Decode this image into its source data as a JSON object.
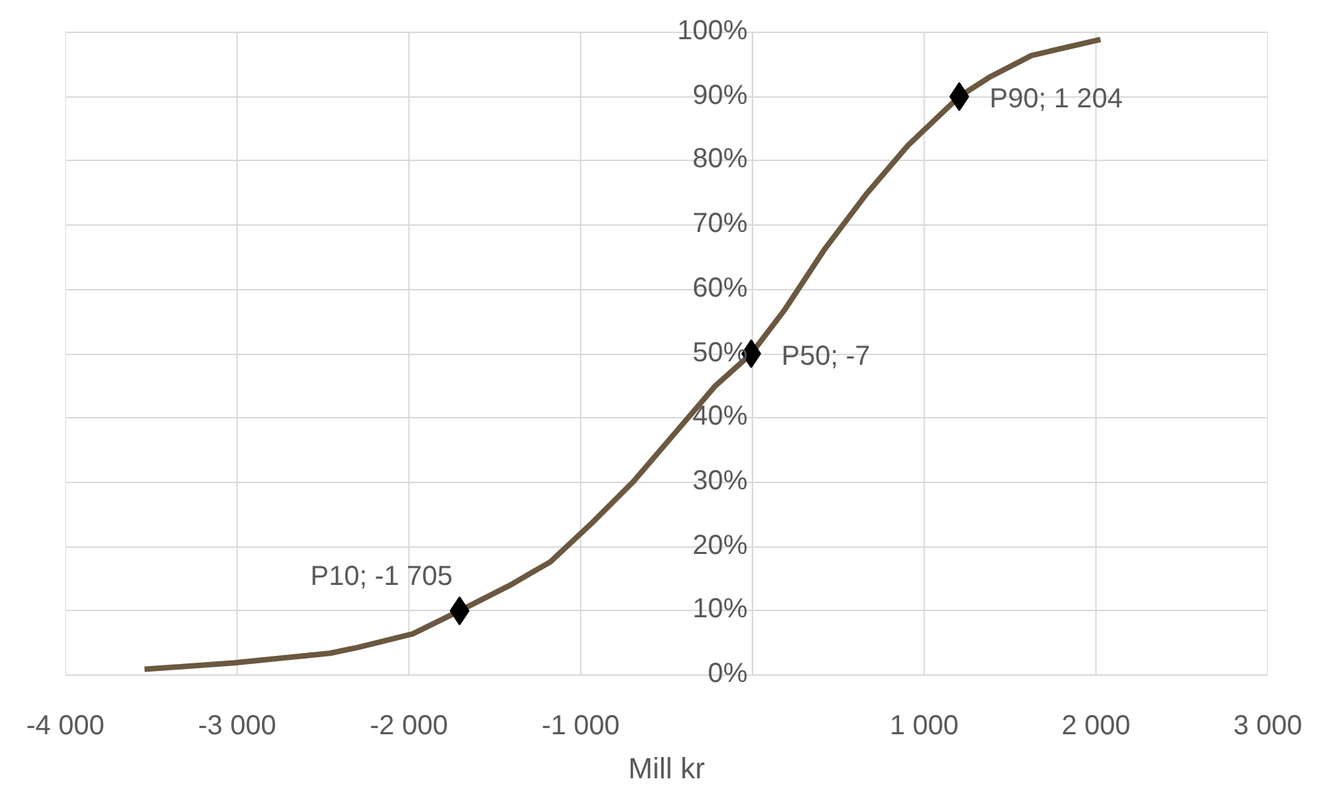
{
  "chart_data": {
    "type": "line",
    "xlabel": "Mill kr",
    "xlim": [
      -4000,
      3000
    ],
    "xticks": [
      {
        "value": -4000,
        "label": "-4 000"
      },
      {
        "value": -3000,
        "label": "-3 000"
      },
      {
        "value": -2000,
        "label": "-2 000"
      },
      {
        "value": -1000,
        "label": "-1 000"
      },
      {
        "value": 0,
        "label": null
      },
      {
        "value": 1000,
        "label": "1 000"
      },
      {
        "value": 2000,
        "label": "2 000"
      },
      {
        "value": 3000,
        "label": "3 000"
      }
    ],
    "ylim": [
      0,
      100
    ],
    "yticks": [
      {
        "value": 0,
        "label": "0%"
      },
      {
        "value": 10,
        "label": "10%"
      },
      {
        "value": 20,
        "label": "20%"
      },
      {
        "value": 30,
        "label": "30%"
      },
      {
        "value": 40,
        "label": "40%"
      },
      {
        "value": 50,
        "label": "50%"
      },
      {
        "value": 60,
        "label": "60%"
      },
      {
        "value": 70,
        "label": "70%"
      },
      {
        "value": 80,
        "label": "80%"
      },
      {
        "value": 90,
        "label": "90%"
      },
      {
        "value": 100,
        "label": "100%"
      }
    ],
    "grid": true,
    "line_style": "solid",
    "series": [
      {
        "color": "#6b5840",
        "marker": "none",
        "x": [
          -3539,
          -3018,
          -2458,
          -2298,
          -1978,
          -1705,
          -1417,
          -1177,
          -937,
          -697,
          -456,
          -216,
          -7,
          184,
          424,
          665,
          905,
          1204,
          1385,
          1625,
          2026
        ],
        "values": [
          0.9,
          1.9,
          3.4,
          4.3,
          6.4,
          10,
          13.9,
          17.6,
          23.6,
          30,
          37.5,
          45,
          50,
          56.7,
          66.4,
          74.9,
          82.4,
          90,
          93.1,
          96.4,
          98.9
        ]
      },
      {
        "type": "scatter",
        "color": "#000000",
        "marker": "diamond",
        "x": [
          -1705,
          -7,
          1204
        ],
        "values": [
          10,
          50,
          90
        ]
      }
    ],
    "annotations": [
      {
        "text": "P10; -1 705",
        "x": -1705,
        "y": 10
      },
      {
        "text": "P50; -7",
        "x": -7,
        "y": 50
      },
      {
        "text": "P90; 1 204",
        "x": 1204,
        "y": 90
      }
    ]
  }
}
